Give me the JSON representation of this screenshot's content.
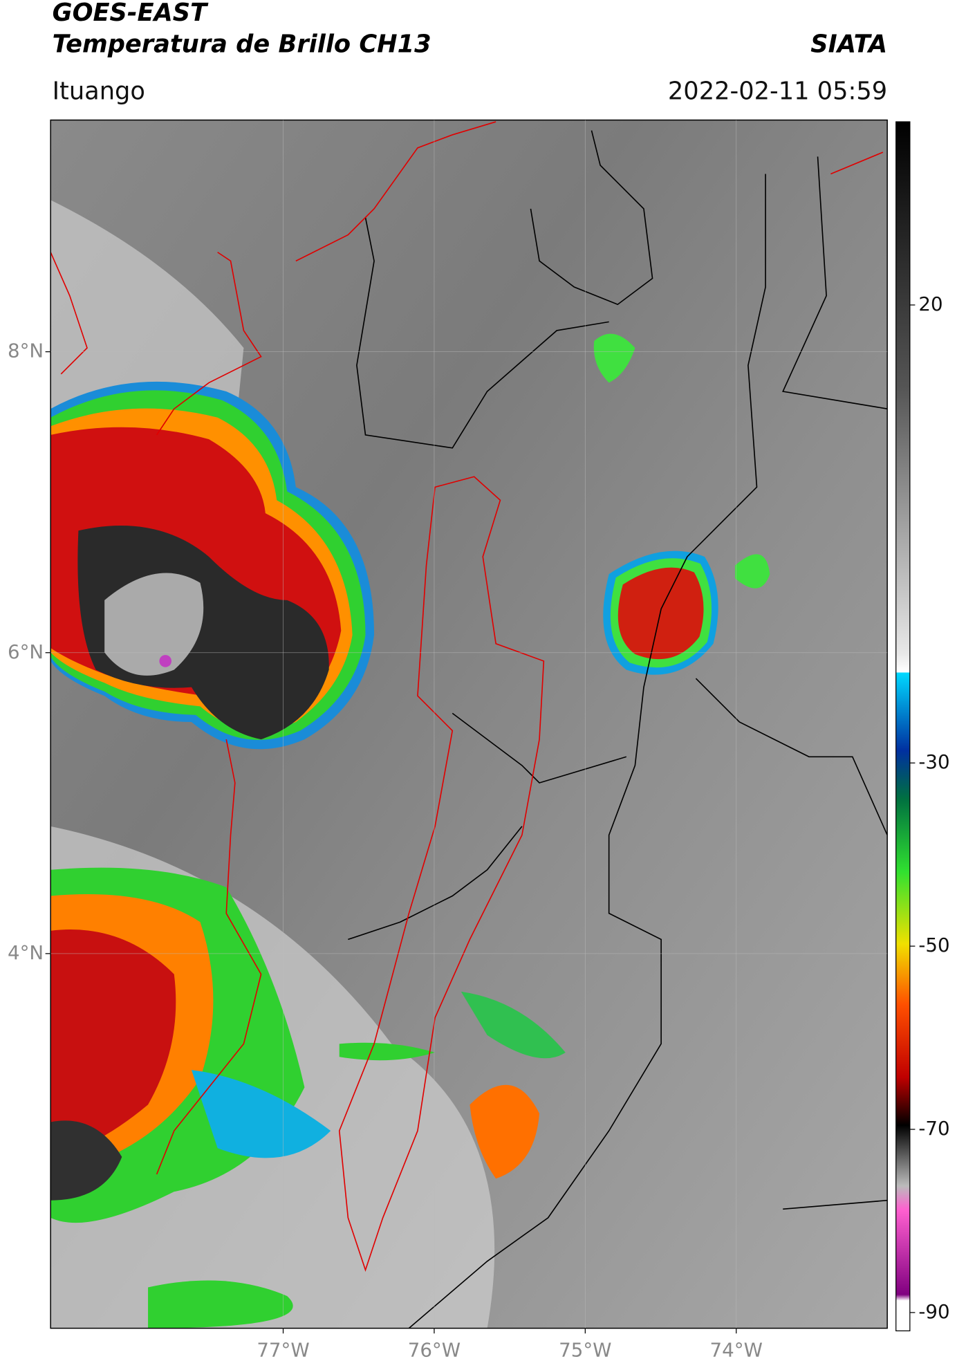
{
  "header": {
    "title": "GOES-EAST",
    "subtitle": "Temperatura de Brillo CH13",
    "source": "SIATA",
    "location": "Ituango",
    "datetime": "2022-02-11 05:59"
  },
  "map": {
    "xlim": [
      -78.54,
      -73.0
    ],
    "ylim": [
      1.51,
      9.54
    ],
    "xticks": [
      {
        "value": -77,
        "label": "77°W"
      },
      {
        "value": -76,
        "label": "76°W"
      },
      {
        "value": -75,
        "label": "75°W"
      },
      {
        "value": -74,
        "label": "74°W"
      }
    ],
    "yticks": [
      {
        "value": 4,
        "label": "4°N"
      },
      {
        "value": 6,
        "label": "6°N"
      },
      {
        "value": 8,
        "label": "8°N"
      }
    ],
    "grid": true
  },
  "colorbar": {
    "lim": [
      -92,
      40
    ],
    "ticks": [
      20,
      -30,
      -50,
      -70,
      -90
    ]
  }
}
